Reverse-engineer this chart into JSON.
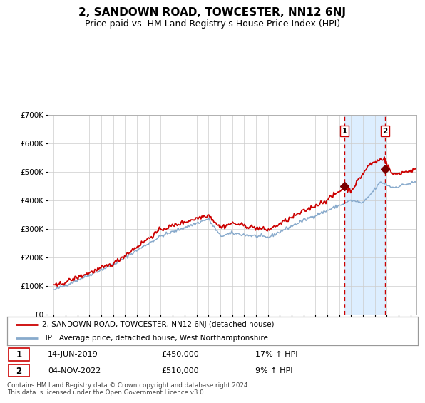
{
  "title": "2, SANDOWN ROAD, TOWCESTER, NN12 6NJ",
  "subtitle": "Price paid vs. HM Land Registry's House Price Index (HPI)",
  "legend_line1": "2, SANDOWN ROAD, TOWCESTER, NN12 6NJ (detached house)",
  "legend_line2": "HPI: Average price, detached house, West Northamptonshire",
  "annotation1_date": "14-JUN-2019",
  "annotation1_price": "£450,000",
  "annotation1_hpi": "17% ↑ HPI",
  "annotation2_date": "04-NOV-2022",
  "annotation2_price": "£510,000",
  "annotation2_hpi": "9% ↑ HPI",
  "footer": "Contains HM Land Registry data © Crown copyright and database right 2024.\nThis data is licensed under the Open Government Licence v3.0.",
  "property_color": "#cc0000",
  "hpi_color": "#88aacc",
  "shade_color": "#ddeeff",
  "vline1_x": 2019.45,
  "vline2_x": 2022.84,
  "sale1_x": 2019.45,
  "sale1_y": 450000,
  "sale2_x": 2022.84,
  "sale2_y": 510000,
  "xlim": [
    1994.5,
    2025.5
  ],
  "ylim": [
    0,
    700000
  ],
  "yticks": [
    0,
    100000,
    200000,
    300000,
    400000,
    500000,
    600000,
    700000
  ],
  "ytick_labels": [
    "£0",
    "£100K",
    "£200K",
    "£300K",
    "£400K",
    "£500K",
    "£600K",
    "£700K"
  ],
  "xtick_start": 1995,
  "xtick_end": 2025,
  "background_color": "#ffffff",
  "grid_color": "#cccccc"
}
